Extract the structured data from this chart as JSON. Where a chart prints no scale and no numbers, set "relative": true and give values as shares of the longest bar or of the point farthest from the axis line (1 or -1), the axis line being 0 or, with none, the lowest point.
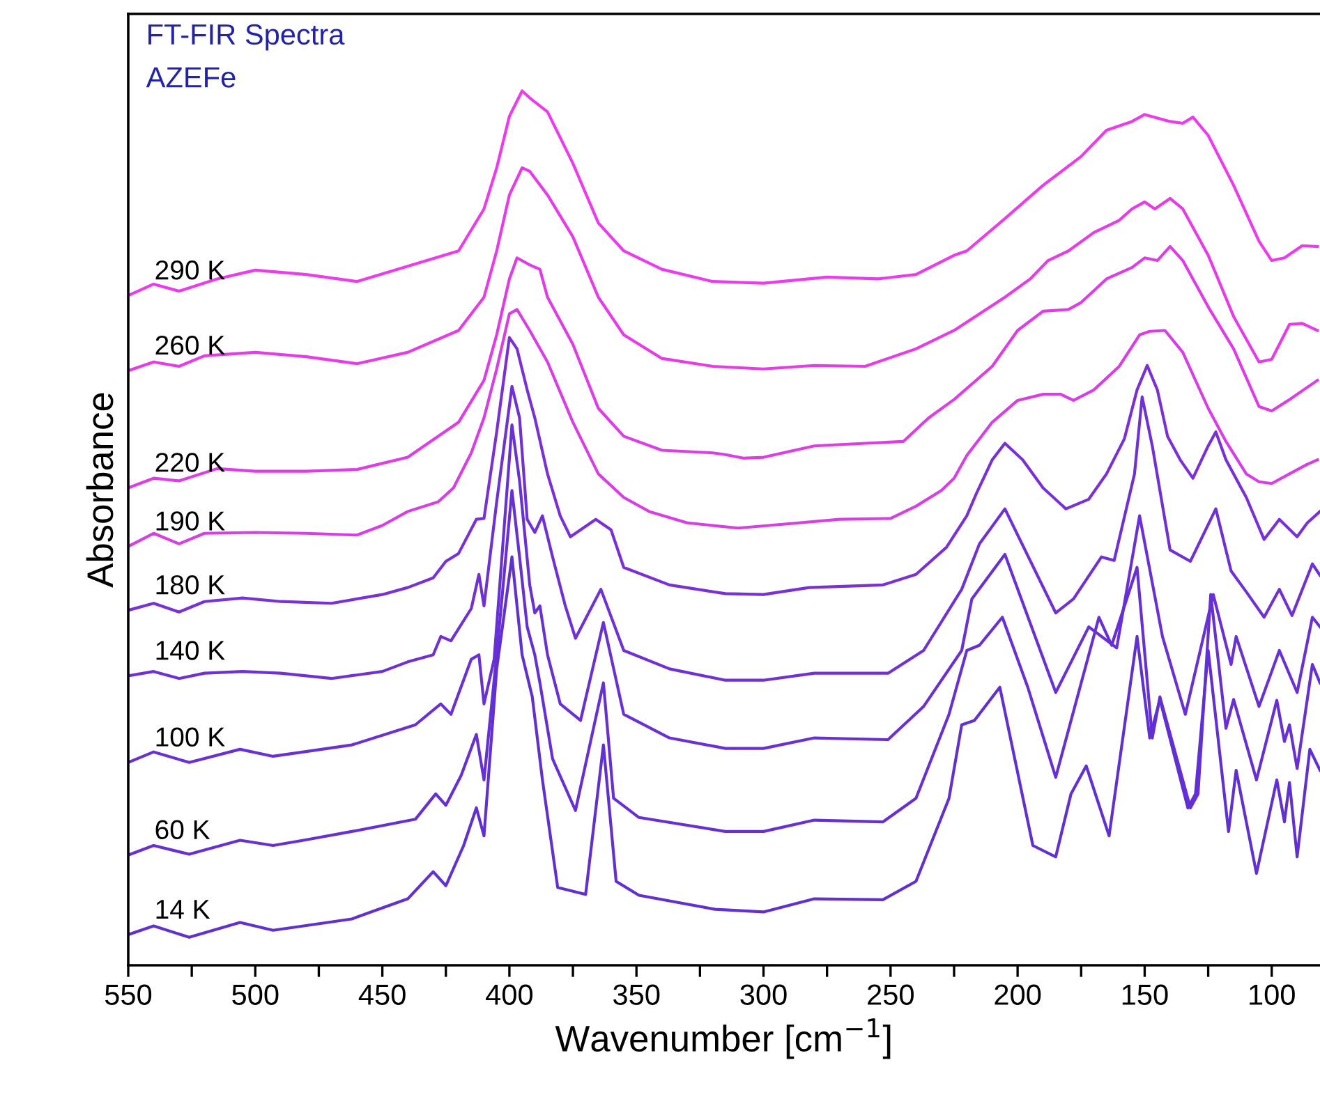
{
  "chart_data": {
    "type": "line",
    "title": "FT-FIR Spectra",
    "subtitle": "AZEFe",
    "xlabel": "Wavenumber [cm$^{−1}$]",
    "ylabel": "Absorbance",
    "relative": true,
    "tick_labels": "x",
    "line_style": "solid",
    "marker": "none",
    "xlim": [
      550,
      81
    ],
    "xticks": [
      550,
      {
        "value": 525,
        "label": null
      },
      500,
      {
        "value": 475,
        "label": null
      },
      450,
      {
        "value": 425,
        "label": null
      },
      400,
      {
        "value": 375,
        "label": null
      },
      350,
      {
        "value": 325,
        "label": null
      },
      300,
      {
        "value": 275,
        "label": null
      },
      250,
      {
        "value": 225,
        "label": null
      },
      200,
      {
        "value": 175,
        "label": null
      },
      150,
      {
        "value": 125,
        "label": null
      },
      100
    ],
    "series": [
      {
        "name": "290 K",
        "color": "#ee3aee",
        "x": [
          550,
          540,
          530,
          515,
          500,
          480,
          460,
          445,
          420,
          410,
          405,
          400,
          395,
          392,
          385,
          375,
          365,
          355,
          340,
          320,
          300,
          275,
          255,
          240,
          225,
          220,
          205,
          190,
          175,
          165,
          155,
          150,
          140,
          135,
          131,
          125,
          115,
          105,
          100,
          95,
          88,
          82
        ],
        "values": [
          0.766,
          0.779,
          0.771,
          0.785,
          0.795,
          0.79,
          0.782,
          0.795,
          0.817,
          0.865,
          0.912,
          0.971,
          1,
          0.992,
          0.976,
          0.917,
          0.849,
          0.817,
          0.796,
          0.782,
          0.78,
          0.787,
          0.785,
          0.79,
          0.812,
          0.817,
          0.854,
          0.892,
          0.925,
          0.955,
          0.965,
          0.973,
          0.965,
          0.963,
          0.97,
          0.949,
          0.892,
          0.828,
          0.806,
          0.809,
          0.823,
          0.822
        ]
      },
      {
        "name": "260 K",
        "color": "#e83ae9",
        "x": [
          550,
          540,
          530,
          520,
          500,
          480,
          460,
          440,
          420,
          410,
          405,
          400,
          395,
          392,
          385,
          375,
          365,
          355,
          340,
          320,
          300,
          280,
          260,
          240,
          225,
          205,
          195,
          188,
          180,
          170,
          160,
          155,
          150,
          146,
          140,
          135,
          125,
          115,
          105,
          100,
          93,
          88,
          82
        ],
        "values": [
          0.68,
          0.69,
          0.685,
          0.697,
          0.701,
          0.696,
          0.688,
          0.701,
          0.726,
          0.764,
          0.817,
          0.881,
          0.912,
          0.908,
          0.881,
          0.833,
          0.764,
          0.721,
          0.694,
          0.685,
          0.682,
          0.686,
          0.685,
          0.705,
          0.726,
          0.764,
          0.785,
          0.806,
          0.817,
          0.838,
          0.852,
          0.865,
          0.873,
          0.865,
          0.877,
          0.865,
          0.812,
          0.742,
          0.69,
          0.693,
          0.733,
          0.734,
          0.726
        ]
      },
      {
        "name": "220 K",
        "color": "#e03be8",
        "x": [
          550,
          540,
          530,
          515,
          500,
          480,
          460,
          440,
          420,
          410,
          405,
          400,
          397,
          392,
          388,
          385,
          375,
          365,
          355,
          340,
          320,
          315,
          308,
          300,
          280,
          260,
          245,
          235,
          225,
          210,
          200,
          190,
          180,
          175,
          165,
          155,
          150,
          145,
          140,
          135,
          125,
          115,
          105,
          100,
          93,
          86,
          82
        ],
        "values": [
          0.546,
          0.557,
          0.554,
          0.568,
          0.565,
          0.565,
          0.567,
          0.581,
          0.621,
          0.669,
          0.721,
          0.785,
          0.809,
          0.801,
          0.796,
          0.764,
          0.71,
          0.637,
          0.605,
          0.589,
          0.586,
          0.584,
          0.58,
          0.581,
          0.594,
          0.597,
          0.599,
          0.626,
          0.647,
          0.685,
          0.726,
          0.748,
          0.75,
          0.758,
          0.785,
          0.798,
          0.809,
          0.806,
          0.822,
          0.806,
          0.753,
          0.705,
          0.639,
          0.634,
          0.647,
          0.661,
          0.669
        ]
      },
      {
        "name": "190 K",
        "color": "#d93ee6",
        "x": [
          550,
          540,
          530,
          520,
          500,
          480,
          460,
          450,
          440,
          428,
          422,
          415,
          410,
          405,
          400,
          397,
          392,
          385,
          375,
          365,
          355,
          345,
          330,
          310,
          290,
          270,
          250,
          240,
          230,
          225,
          220,
          210,
          200,
          190,
          183,
          178,
          170,
          160,
          152,
          148,
          142,
          135,
          125,
          118,
          110,
          105,
          100,
          93,
          86,
          82
        ],
        "values": [
          0.479,
          0.494,
          0.482,
          0.494,
          0.495,
          0.494,
          0.492,
          0.503,
          0.519,
          0.53,
          0.546,
          0.586,
          0.626,
          0.682,
          0.745,
          0.75,
          0.726,
          0.69,
          0.621,
          0.562,
          0.535,
          0.519,
          0.506,
          0.5,
          0.505,
          0.51,
          0.511,
          0.525,
          0.543,
          0.557,
          0.583,
          0.621,
          0.646,
          0.653,
          0.653,
          0.646,
          0.658,
          0.685,
          0.721,
          0.725,
          0.726,
          0.701,
          0.637,
          0.599,
          0.562,
          0.553,
          0.551,
          0.562,
          0.573,
          0.578
        ]
      },
      {
        "name": "180 K",
        "color": "#7a30d8",
        "x": [
          550,
          540,
          530,
          520,
          505,
          490,
          470,
          450,
          440,
          430,
          425,
          420,
          413,
          410,
          405,
          400,
          397,
          393,
          390,
          385,
          380,
          376,
          372,
          366,
          360,
          355,
          337,
          315,
          300,
          282,
          253,
          240,
          228,
          220,
          216,
          210,
          205,
          198,
          190,
          181,
          172,
          165,
          158,
          153,
          149,
          145,
          141,
          136,
          131,
          125,
          122,
          118,
          110,
          103,
          97,
          90,
          86,
          81
        ],
        "values": [
          0.406,
          0.414,
          0.404,
          0.416,
          0.42,
          0.416,
          0.414,
          0.424,
          0.432,
          0.443,
          0.462,
          0.471,
          0.51,
          0.511,
          0.61,
          0.718,
          0.705,
          0.658,
          0.626,
          0.562,
          0.514,
          0.49,
          0.498,
          0.51,
          0.498,
          0.455,
          0.435,
          0.425,
          0.424,
          0.432,
          0.435,
          0.447,
          0.478,
          0.514,
          0.541,
          0.578,
          0.597,
          0.578,
          0.546,
          0.522,
          0.533,
          0.562,
          0.602,
          0.658,
          0.686,
          0.658,
          0.605,
          0.578,
          0.557,
          0.594,
          0.61,
          0.578,
          0.535,
          0.487,
          0.51,
          0.49,
          0.506,
          0.519
        ]
      },
      {
        "name": "140 K",
        "color": "#7030d8",
        "x": [
          550,
          540,
          530,
          520,
          505,
          490,
          470,
          450,
          440,
          430,
          427,
          423,
          415,
          412,
          410,
          405,
          399,
          396,
          393,
          390,
          387,
          383,
          378,
          374,
          364,
          355,
          337,
          315,
          300,
          280,
          251,
          237,
          222,
          215,
          205,
          185,
          178,
          167,
          162,
          154,
          151,
          147,
          140,
          132,
          122,
          116,
          110,
          103,
          97,
          92,
          84,
          81
        ],
        "values": [
          0.331,
          0.336,
          0.328,
          0.334,
          0.336,
          0.334,
          0.328,
          0.336,
          0.347,
          0.355,
          0.376,
          0.371,
          0.408,
          0.447,
          0.411,
          0.53,
          0.662,
          0.626,
          0.51,
          0.495,
          0.514,
          0.467,
          0.411,
          0.374,
          0.43,
          0.36,
          0.339,
          0.326,
          0.326,
          0.334,
          0.334,
          0.36,
          0.43,
          0.482,
          0.522,
          0.403,
          0.419,
          0.467,
          0.463,
          0.562,
          0.65,
          0.594,
          0.475,
          0.462,
          0.522,
          0.451,
          0.427,
          0.398,
          0.43,
          0.4,
          0.459,
          0.446
        ]
      },
      {
        "name": "100 K",
        "color": "#6a30d8",
        "x": [
          550,
          540,
          526,
          506,
          493,
          481,
          462,
          437,
          427,
          423,
          415,
          412,
          410,
          406,
          399,
          396,
          392,
          390,
          388,
          385,
          380,
          372,
          363,
          355,
          337,
          315,
          300,
          280,
          251,
          237,
          222,
          218,
          205,
          185,
          172,
          161,
          152,
          143,
          134,
          123,
          116,
          114,
          105,
          97,
          90,
          84,
          81
        ],
        "values": [
          0.232,
          0.244,
          0.232,
          0.247,
          0.239,
          0.244,
          0.252,
          0.275,
          0.299,
          0.287,
          0.35,
          0.355,
          0.299,
          0.35,
          0.618,
          0.554,
          0.435,
          0.403,
          0.411,
          0.355,
          0.299,
          0.28,
          0.392,
          0.287,
          0.26,
          0.248,
          0.248,
          0.26,
          0.258,
          0.296,
          0.36,
          0.419,
          0.47,
          0.312,
          0.387,
          0.363,
          0.514,
          0.376,
          0.287,
          0.424,
          0.344,
          0.376,
          0.296,
          0.36,
          0.312,
          0.398,
          0.387
        ]
      },
      {
        "name": "60 K",
        "color": "#6630d6",
        "x": [
          550,
          540,
          526,
          506,
          493,
          481,
          462,
          437,
          429,
          425,
          419,
          413,
          410,
          405,
          399,
          396,
          393,
          390,
          388,
          383,
          374,
          363,
          359,
          349,
          315,
          300,
          280,
          253,
          240,
          227,
          220,
          215,
          206,
          196,
          185,
          168,
          163,
          153,
          147,
          144,
          132,
          129,
          124,
          118,
          115,
          106,
          98,
          95,
          93,
          90,
          84,
          81
        ],
        "values": [
          0.126,
          0.137,
          0.127,
          0.143,
          0.137,
          0.143,
          0.153,
          0.167,
          0.196,
          0.183,
          0.217,
          0.264,
          0.212,
          0.355,
          0.543,
          0.467,
          0.387,
          0.355,
          0.323,
          0.236,
          0.177,
          0.323,
          0.191,
          0.169,
          0.153,
          0.153,
          0.166,
          0.164,
          0.191,
          0.287,
          0.36,
          0.366,
          0.398,
          0.318,
          0.215,
          0.398,
          0.366,
          0.455,
          0.26,
          0.307,
          0.18,
          0.196,
          0.424,
          0.271,
          0.304,
          0.212,
          0.303,
          0.256,
          0.275,
          0.225,
          0.344,
          0.323
        ]
      },
      {
        "name": "14 K",
        "color": "#6030d4",
        "x": [
          550,
          540,
          526,
          506,
          493,
          481,
          462,
          440,
          430,
          425,
          418,
          413,
          410,
          405,
          399,
          395,
          391,
          387,
          381,
          370,
          363,
          358,
          349,
          319,
          300,
          280,
          253,
          240,
          227,
          222,
          217,
          207,
          194,
          185,
          179,
          173,
          164,
          153,
          148,
          144,
          133,
          130,
          125,
          117,
          114,
          106,
          98,
          95,
          93,
          90,
          85,
          81
        ],
        "values": [
          0.035,
          0.045,
          0.032,
          0.049,
          0.04,
          0.045,
          0.053,
          0.076,
          0.107,
          0.091,
          0.137,
          0.18,
          0.148,
          0.339,
          0.467,
          0.355,
          0.307,
          0.212,
          0.089,
          0.081,
          0.252,
          0.096,
          0.08,
          0.064,
          0.061,
          0.076,
          0.075,
          0.096,
          0.191,
          0.275,
          0.28,
          0.318,
          0.137,
          0.124,
          0.196,
          0.228,
          0.148,
          0.376,
          0.26,
          0.304,
          0.18,
          0.196,
          0.36,
          0.153,
          0.223,
          0.105,
          0.212,
          0.164,
          0.209,
          0.124,
          0.247,
          0.223
        ]
      }
    ]
  }
}
